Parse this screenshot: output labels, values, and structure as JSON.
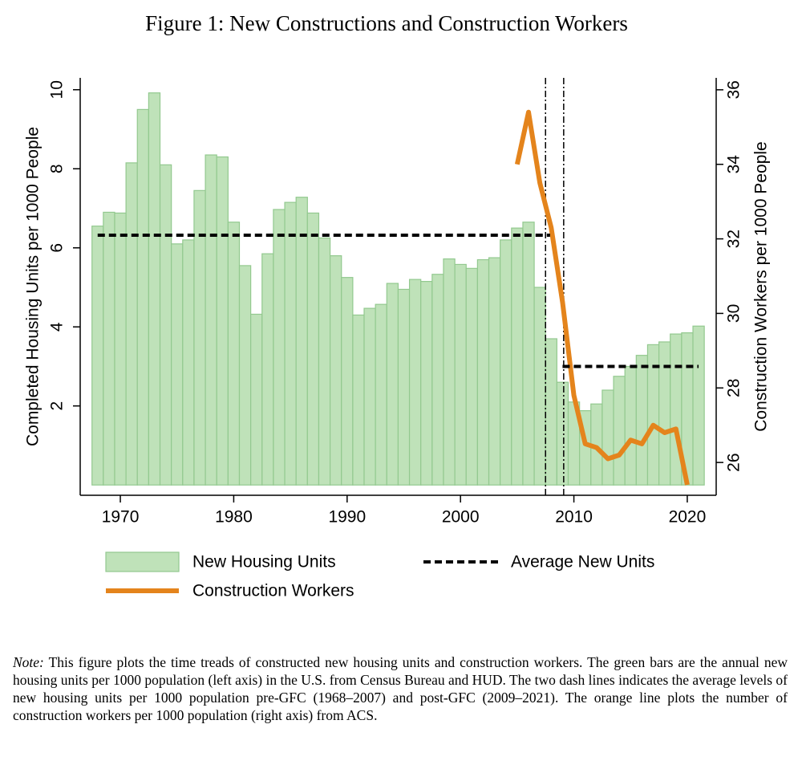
{
  "chart_data": {
    "type": "bar_line",
    "title": "Figure 1: New Constructions and Construction Workers",
    "ylabel": "Completed Housing Units per 1000 People",
    "y2label": "Construction Workers per 1000 People",
    "x": [
      1968,
      1969,
      1970,
      1971,
      1972,
      1973,
      1974,
      1975,
      1976,
      1977,
      1978,
      1979,
      1980,
      1981,
      1982,
      1983,
      1984,
      1985,
      1986,
      1987,
      1988,
      1989,
      1990,
      1991,
      1992,
      1993,
      1994,
      1995,
      1996,
      1997,
      1998,
      1999,
      2000,
      2001,
      2002,
      2003,
      2004,
      2005,
      2006,
      2007,
      2008,
      2009,
      2010,
      2011,
      2012,
      2013,
      2014,
      2015,
      2016,
      2017,
      2018,
      2019,
      2020,
      2021
    ],
    "series": [
      {
        "name": "New Housing Units",
        "type": "bar",
        "color": "#bfe2b9",
        "edge": "#93c98f",
        "values": [
          6.55,
          6.9,
          6.88,
          8.15,
          9.5,
          9.92,
          8.1,
          6.1,
          6.2,
          7.45,
          8.35,
          8.3,
          6.65,
          5.55,
          4.32,
          5.85,
          6.97,
          7.15,
          7.28,
          6.88,
          6.25,
          5.8,
          5.25,
          4.3,
          4.47,
          4.57,
          5.1,
          4.95,
          5.2,
          5.15,
          5.33,
          5.72,
          5.58,
          5.48,
          5.7,
          5.75,
          6.2,
          6.5,
          6.65,
          5.0,
          3.7,
          2.6,
          2.1,
          1.88,
          2.05,
          2.4,
          2.75,
          3.0,
          3.28,
          3.55,
          3.62,
          3.82,
          3.85,
          4.02
        ]
      },
      {
        "name": "Construction Workers",
        "type": "line",
        "axis": "y2",
        "color": "#e4841c",
        "values": [
          null,
          null,
          null,
          null,
          null,
          null,
          null,
          null,
          null,
          null,
          null,
          null,
          null,
          null,
          null,
          null,
          null,
          null,
          null,
          null,
          null,
          null,
          null,
          null,
          null,
          null,
          null,
          null,
          null,
          null,
          null,
          null,
          null,
          null,
          null,
          null,
          null,
          34.0,
          35.4,
          33.5,
          32.3,
          30.3,
          27.8,
          26.5,
          26.4,
          26.1,
          26.2,
          26.6,
          26.5,
          27.0,
          26.8,
          26.9,
          25.4,
          null
        ]
      },
      {
        "name": "Average New Units",
        "type": "segments",
        "color": "#000000",
        "segments": [
          {
            "x0": 1968,
            "x1": 2007.9,
            "value": 6.32
          },
          {
            "x0": 2009,
            "x1": 2021,
            "value": 3.0
          }
        ]
      }
    ],
    "vlines": [
      2007.5,
      2009.1
    ],
    "xlim": [
      1966.46,
      2022.55
    ],
    "xticks": [
      1970,
      1980,
      1990,
      2000,
      2010,
      2020
    ],
    "ylim": [
      -0.26,
      10.3
    ],
    "yticks": [
      2,
      4,
      6,
      8,
      10
    ],
    "y2lim": [
      25.12,
      36.32
    ],
    "y2ticks": [
      26,
      28,
      30,
      32,
      34,
      36
    ]
  },
  "note": {
    "label": "Note:",
    "text": "This figure plots the time treads of constructed new housing units and construction workers. The green bars are the annual new housing units per 1000 population (left axis) in the U.S. from Census Bureau and HUD. The two dash lines indicates the average levels of new housing units per 1000 population pre-GFC (1968–2007) and post-GFC (2009–2021). The orange line plots the number of construction workers per 1000 population (right axis) from ACS."
  }
}
